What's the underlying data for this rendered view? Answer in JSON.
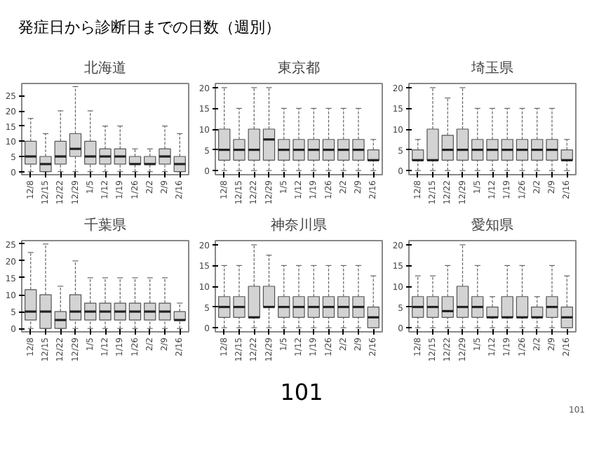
{
  "chart_data": [
    {
      "type": "box",
      "title": "北海道",
      "annotations": [
        "発症日から診断日までの日数（週別）"
      ],
      "categories": [
        "12/8",
        "12/15",
        "12/22",
        "12/29",
        "1/5",
        "1/12",
        "1/19",
        "1/26",
        "2/2",
        "2/9",
        "2/16"
      ],
      "ylim": [
        -1,
        29
      ],
      "yticks": [
        0,
        5,
        10,
        15,
        20,
        25
      ],
      "boxes": [
        {
          "low": 0,
          "q1": 2.5,
          "median": 5,
          "q3": 10,
          "high": 17.5
        },
        {
          "low": 0,
          "q1": 0,
          "median": 2.5,
          "q3": 5,
          "high": 12.5
        },
        {
          "low": 0,
          "q1": 2.5,
          "median": 5,
          "q3": 10,
          "high": 20
        },
        {
          "low": 0,
          "q1": 5,
          "median": 7.5,
          "q3": 12.5,
          "high": 28
        },
        {
          "low": 0,
          "q1": 2.5,
          "median": 5,
          "q3": 10,
          "high": 20
        },
        {
          "low": 0,
          "q1": 2.5,
          "median": 5,
          "q3": 7.5,
          "high": 15
        },
        {
          "low": 0,
          "q1": 2.5,
          "median": 5,
          "q3": 7.5,
          "high": 15
        },
        {
          "low": 0,
          "q1": 2.5,
          "median": 2.5,
          "q3": 5,
          "high": 7.5
        },
        {
          "low": 0,
          "q1": 2.5,
          "median": 2.5,
          "q3": 5,
          "high": 7.5
        },
        {
          "low": 0,
          "q1": 2.5,
          "median": 5,
          "q3": 7.5,
          "high": 15
        },
        {
          "low": 0,
          "q1": 0,
          "median": 2.5,
          "q3": 5,
          "high": 12.5
        }
      ]
    },
    {
      "type": "box",
      "title": "東京都",
      "categories": [
        "12/8",
        "12/15",
        "12/22",
        "12/29",
        "1/5",
        "1/12",
        "1/19",
        "1/26",
        "2/2",
        "2/9",
        "2/16"
      ],
      "ylim": [
        -1,
        21
      ],
      "yticks": [
        0,
        5,
        10,
        15,
        20
      ],
      "boxes": [
        {
          "low": 0,
          "q1": 2.5,
          "median": 5,
          "q3": 10,
          "high": 20
        },
        {
          "low": 0,
          "q1": 2.5,
          "median": 5,
          "q3": 7.5,
          "high": 15
        },
        {
          "low": 0,
          "q1": 2.5,
          "median": 5,
          "q3": 10,
          "high": 20
        },
        {
          "low": 0,
          "q1": 2.5,
          "median": 7.5,
          "q3": 10,
          "high": 20
        },
        {
          "low": 0,
          "q1": 2.5,
          "median": 5,
          "q3": 7.5,
          "high": 15
        },
        {
          "low": 0,
          "q1": 2.5,
          "median": 5,
          "q3": 7.5,
          "high": 15
        },
        {
          "low": 0,
          "q1": 2.5,
          "median": 5,
          "q3": 7.5,
          "high": 15
        },
        {
          "low": 0,
          "q1": 2.5,
          "median": 5,
          "q3": 7.5,
          "high": 15
        },
        {
          "low": 0,
          "q1": 2.5,
          "median": 5,
          "q3": 7.5,
          "high": 15
        },
        {
          "low": 0,
          "q1": 2.5,
          "median": 5,
          "q3": 7.5,
          "high": 15
        },
        {
          "low": 0,
          "q1": 2.5,
          "median": 2.5,
          "q3": 5,
          "high": 7.5
        }
      ]
    },
    {
      "type": "box",
      "title": "埼玉県",
      "categories": [
        "12/8",
        "12/15",
        "12/22",
        "12/29",
        "1/5",
        "1/12",
        "1/19",
        "1/26",
        "2/2",
        "2/9",
        "2/16"
      ],
      "ylim": [
        -1,
        21
      ],
      "yticks": [
        0,
        5,
        10,
        15,
        20
      ],
      "boxes": [
        {
          "low": 0,
          "q1": 2.5,
          "median": 2.5,
          "q3": 5,
          "high": 7.5
        },
        {
          "low": 0,
          "q1": 2.5,
          "median": 2.5,
          "q3": 10,
          "high": 20
        },
        {
          "low": 0,
          "q1": 2.5,
          "median": 5,
          "q3": 8.5,
          "high": 17.5
        },
        {
          "low": 0,
          "q1": 2.5,
          "median": 5,
          "q3": 10,
          "high": 20
        },
        {
          "low": 0,
          "q1": 2.5,
          "median": 5,
          "q3": 7.5,
          "high": 15
        },
        {
          "low": 0,
          "q1": 2.5,
          "median": 5,
          "q3": 7.5,
          "high": 15
        },
        {
          "low": 0,
          "q1": 2.5,
          "median": 5,
          "q3": 7.5,
          "high": 15
        },
        {
          "low": 0,
          "q1": 2.5,
          "median": 5,
          "q3": 7.5,
          "high": 15
        },
        {
          "low": 0,
          "q1": 2.5,
          "median": 5,
          "q3": 7.5,
          "high": 15
        },
        {
          "low": 0,
          "q1": 2.5,
          "median": 5,
          "q3": 7.5,
          "high": 15
        },
        {
          "low": 0,
          "q1": 2.5,
          "median": 2.5,
          "q3": 5,
          "high": 7.5
        }
      ]
    },
    {
      "type": "box",
      "title": "千葉県",
      "categories": [
        "12/8",
        "12/15",
        "12/22",
        "12/29",
        "1/5",
        "1/12",
        "1/19",
        "1/26",
        "2/2",
        "2/9",
        "2/16"
      ],
      "ylim": [
        -1,
        26
      ],
      "yticks": [
        0,
        5,
        10,
        15,
        20,
        25
      ],
      "boxes": [
        {
          "low": 0,
          "q1": 2.5,
          "median": 5,
          "q3": 11.5,
          "high": 22.5
        },
        {
          "low": 0,
          "q1": 0,
          "median": 5,
          "q3": 10,
          "high": 25
        },
        {
          "low": 0,
          "q1": 0,
          "median": 2.5,
          "q3": 5,
          "high": 12.5
        },
        {
          "low": 0,
          "q1": 2.5,
          "median": 5,
          "q3": 10,
          "high": 20
        },
        {
          "low": 0,
          "q1": 2.5,
          "median": 5,
          "q3": 7.5,
          "high": 15
        },
        {
          "low": 0,
          "q1": 2.5,
          "median": 5,
          "q3": 7.5,
          "high": 15
        },
        {
          "low": 0,
          "q1": 2.5,
          "median": 5,
          "q3": 7.5,
          "high": 15
        },
        {
          "low": 0,
          "q1": 2.5,
          "median": 5,
          "q3": 7.5,
          "high": 15
        },
        {
          "low": 0,
          "q1": 2.5,
          "median": 5,
          "q3": 7.5,
          "high": 15
        },
        {
          "low": 0,
          "q1": 2.5,
          "median": 5,
          "q3": 7.5,
          "high": 15
        },
        {
          "low": 0,
          "q1": 2.5,
          "median": 2.5,
          "q3": 5,
          "high": 7.5
        }
      ]
    },
    {
      "type": "box",
      "title": "神奈川県",
      "categories": [
        "12/8",
        "12/15",
        "12/22",
        "12/29",
        "1/5",
        "1/12",
        "1/19",
        "1/26",
        "2/2",
        "2/9",
        "2/16"
      ],
      "ylim": [
        -1,
        21
      ],
      "yticks": [
        0,
        5,
        10,
        15,
        20
      ],
      "boxes": [
        {
          "low": 0,
          "q1": 2.5,
          "median": 5,
          "q3": 7.5,
          "high": 15
        },
        {
          "low": 0,
          "q1": 2.5,
          "median": 5,
          "q3": 7.5,
          "high": 15
        },
        {
          "low": 0,
          "q1": 2.5,
          "median": 2.5,
          "q3": 10,
          "high": 20
        },
        {
          "low": 0,
          "q1": 5,
          "median": 5,
          "q3": 10,
          "high": 17.5
        },
        {
          "low": 0,
          "q1": 2.5,
          "median": 5,
          "q3": 7.5,
          "high": 15
        },
        {
          "low": 0,
          "q1": 2.5,
          "median": 5,
          "q3": 7.5,
          "high": 15
        },
        {
          "low": 0,
          "q1": 2.5,
          "median": 5,
          "q3": 7.5,
          "high": 15
        },
        {
          "low": 0,
          "q1": 2.5,
          "median": 5,
          "q3": 7.5,
          "high": 15
        },
        {
          "low": 0,
          "q1": 2.5,
          "median": 5,
          "q3": 7.5,
          "high": 15
        },
        {
          "low": 0,
          "q1": 2.5,
          "median": 5,
          "q3": 7.5,
          "high": 15
        },
        {
          "low": 0,
          "q1": 0,
          "median": 2.5,
          "q3": 5,
          "high": 12.5
        }
      ]
    },
    {
      "type": "box",
      "title": "愛知県",
      "annotations": [
        "101",
        "101"
      ],
      "categories": [
        "12/8",
        "12/15",
        "12/22",
        "12/29",
        "1/5",
        "1/12",
        "1/19",
        "1/26",
        "2/2",
        "2/9",
        "2/16"
      ],
      "ylim": [
        -1,
        21
      ],
      "yticks": [
        0,
        5,
        10,
        15,
        20
      ],
      "boxes": [
        {
          "low": 0,
          "q1": 2.5,
          "median": 5,
          "q3": 7.5,
          "high": 12.5
        },
        {
          "low": 0,
          "q1": 2.5,
          "median": 5,
          "q3": 7.5,
          "high": 12.5
        },
        {
          "low": 0,
          "q1": 2.5,
          "median": 4,
          "q3": 7.5,
          "high": 15
        },
        {
          "low": 0,
          "q1": 2.5,
          "median": 5,
          "q3": 10,
          "high": 20
        },
        {
          "low": 0,
          "q1": 2.5,
          "median": 5,
          "q3": 7.5,
          "high": 15
        },
        {
          "low": 0,
          "q1": 2.5,
          "median": 2.5,
          "q3": 5,
          "high": 7.5
        },
        {
          "low": 0,
          "q1": 2.5,
          "median": 2.5,
          "q3": 7.5,
          "high": 15
        },
        {
          "low": 0,
          "q1": 2.5,
          "median": 2.5,
          "q3": 7.5,
          "high": 15
        },
        {
          "low": 0,
          "q1": 2.5,
          "median": 2.5,
          "q3": 5,
          "high": 7.5
        },
        {
          "low": 0,
          "q1": 2.5,
          "median": 5,
          "q3": 7.5,
          "high": 15
        },
        {
          "low": 0,
          "q1": 0,
          "median": 2.5,
          "q3": 5,
          "high": 12.5
        }
      ]
    }
  ]
}
